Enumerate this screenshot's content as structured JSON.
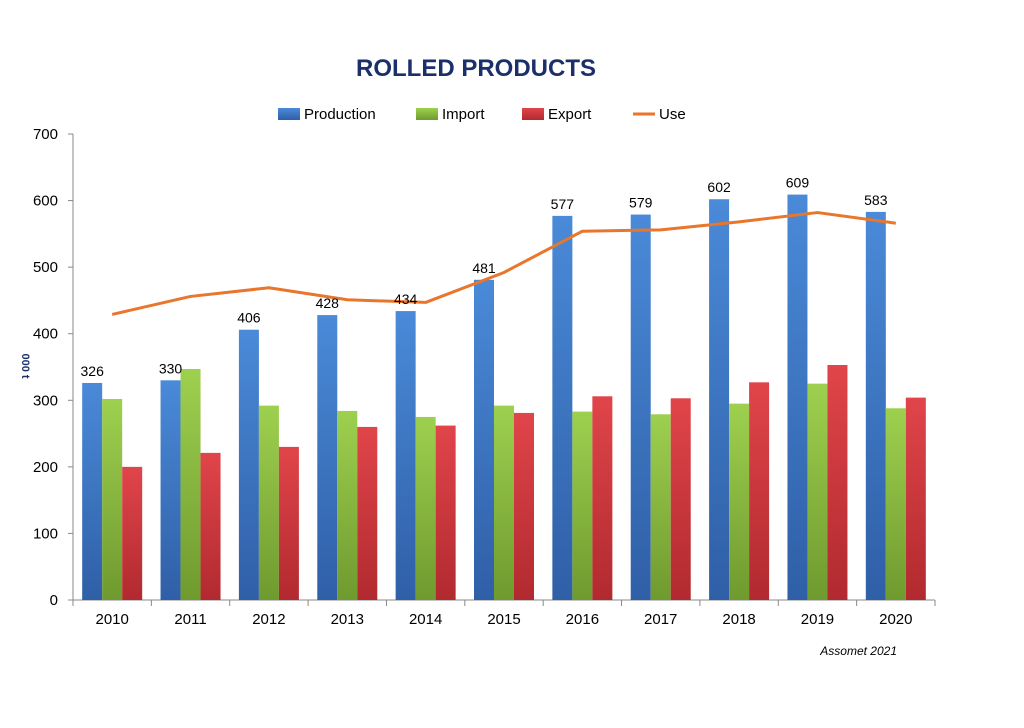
{
  "chart_data": {
    "type": "bar",
    "title": "ROLLED PRODUCTS",
    "ylabel": "000 t",
    "xlabel": "",
    "ylim": [
      0,
      700
    ],
    "yticks": [
      0,
      100,
      200,
      300,
      400,
      500,
      600,
      700
    ],
    "categories": [
      "2010",
      "2011",
      "2012",
      "2013",
      "2014",
      "2015",
      "2016",
      "2017",
      "2018",
      "2019",
      "2020"
    ],
    "series": [
      {
        "name": "Production",
        "kind": "bar",
        "color": "#3a78c9",
        "values": [
          326,
          330,
          406,
          428,
          434,
          481,
          577,
          579,
          602,
          609,
          583
        ]
      },
      {
        "name": "Import",
        "kind": "bar",
        "color": "#8cc63f",
        "values": [
          302,
          347,
          292,
          284,
          275,
          292,
          283,
          279,
          295,
          325,
          288
        ]
      },
      {
        "name": "Export",
        "kind": "bar",
        "color": "#d0363a",
        "values": [
          200,
          221,
          230,
          260,
          262,
          281,
          306,
          303,
          327,
          353,
          304
        ]
      },
      {
        "name": "Use",
        "kind": "line",
        "color": "#e8762c",
        "values": [
          429,
          456,
          469,
          451,
          447,
          492,
          554,
          556,
          568,
          582,
          566
        ]
      }
    ],
    "data_labels": [
      "326",
      "330",
      "406",
      "428",
      "434",
      "481",
      "577",
      "579",
      "602",
      "609",
      "583"
    ],
    "legend_position": "top",
    "grid": false,
    "source": "Assomet 2021"
  }
}
